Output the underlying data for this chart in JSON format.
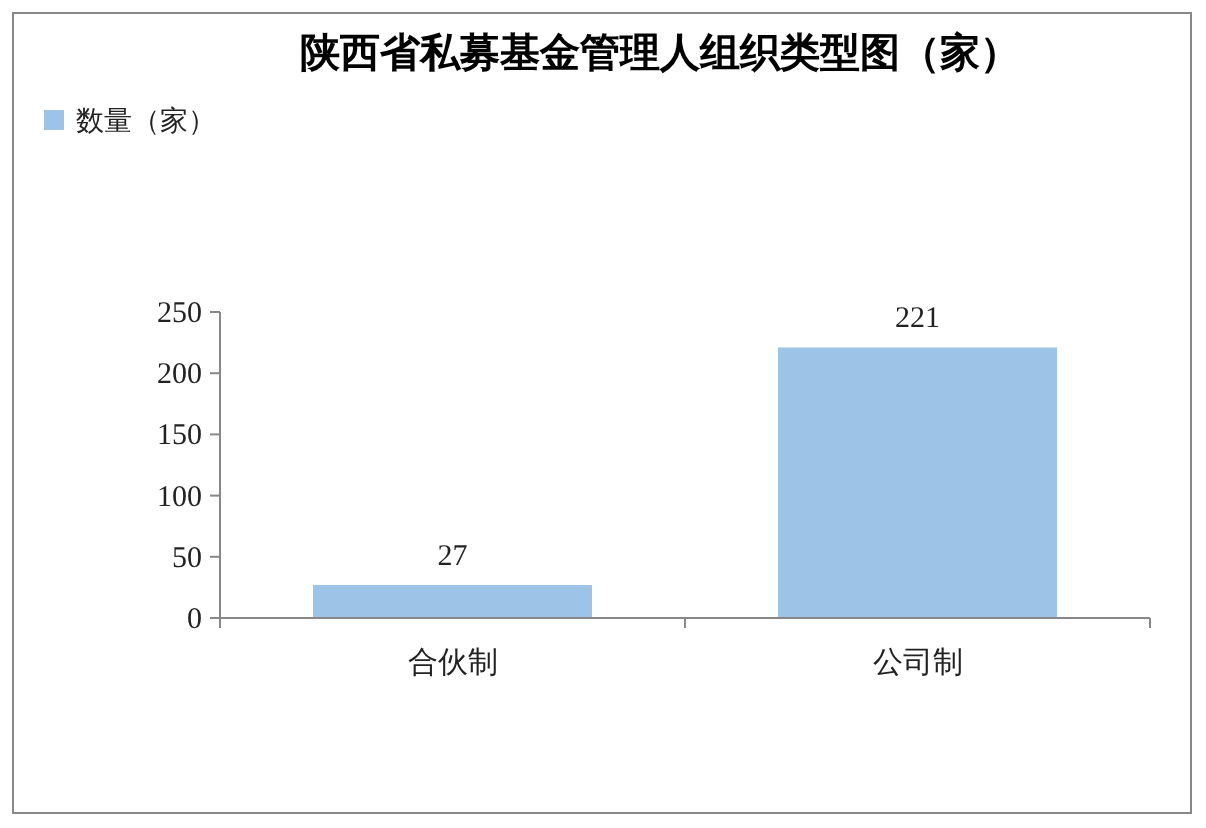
{
  "chart_data": {
    "type": "bar",
    "title": "陕西省私募基金管理人组织类型图（家）",
    "categories": [
      "合伙制",
      "公司制"
    ],
    "series": [
      {
        "name": "数量（家）",
        "color": "#9dc3e6",
        "values": [
          27,
          221
        ]
      }
    ],
    "ylim": [
      0,
      250
    ],
    "yticks": [
      0,
      50,
      100,
      150,
      200,
      250
    ],
    "data_labels": true,
    "legend": "top left",
    "grid": false
  }
}
